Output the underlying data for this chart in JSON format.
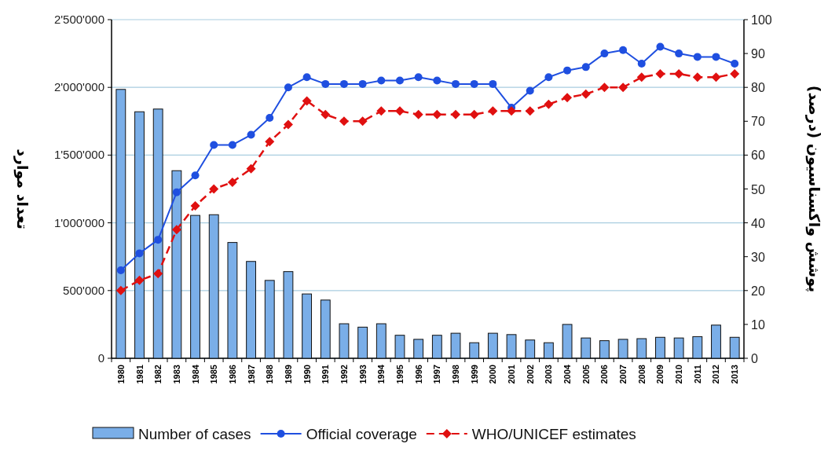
{
  "chart_data": {
    "type": "bar",
    "categories": [
      "1980",
      "1981",
      "1982",
      "1983",
      "1984",
      "1985",
      "1986",
      "1987",
      "1988",
      "1989",
      "1990",
      "1991",
      "1992",
      "1993",
      "1994",
      "1995",
      "1996",
      "1997",
      "1998",
      "1999",
      "2000",
      "2001",
      "2002",
      "2003",
      "2004",
      "2005",
      "2006",
      "2007",
      "2008",
      "2009",
      "2010",
      "2011",
      "2012",
      "2013"
    ],
    "ylabel": "تعداد موارد",
    "y2label": "پوشش واکسناسیون (درصد)",
    "ylim": [
      0,
      2500000
    ],
    "yticks": [
      {
        "value": 0,
        "label": "0"
      },
      {
        "value": 500000,
        "label": "500'000"
      },
      {
        "value": 1000000,
        "label": "1'000'000"
      },
      {
        "value": 1500000,
        "label": "1'500'000"
      },
      {
        "value": 2000000,
        "label": "2'000'000"
      },
      {
        "value": 2500000,
        "label": "2'500'000"
      }
    ],
    "y2lim": [
      0,
      100
    ],
    "y2ticks": [
      0,
      10,
      20,
      30,
      40,
      50,
      60,
      70,
      80,
      90,
      100
    ],
    "grid": "y",
    "legend": "bottom",
    "series": [
      {
        "name": "Number of cases",
        "color": "#7aaee8",
        "values": [
          1985000,
          1820000,
          1840000,
          1385000,
          1055000,
          1060000,
          855000,
          715000,
          575000,
          640000,
          475000,
          430000,
          255000,
          230000,
          255000,
          170000,
          140000,
          170000,
          185000,
          115000,
          185000,
          175000,
          135000,
          115000,
          250000,
          150000,
          130000,
          140000,
          145000,
          155000,
          150000,
          160000,
          245000,
          155000
        ]
      },
      {
        "name": "Official coverage",
        "type": "line",
        "axis": "y2",
        "color": "#1f4fe0",
        "marker": "circle",
        "line_style": "solid",
        "values": [
          26,
          31,
          35,
          49,
          54,
          63,
          63,
          66,
          71,
          80,
          83,
          81,
          81,
          81,
          82,
          82,
          83,
          82,
          81,
          81,
          81,
          74,
          79,
          83,
          85,
          86,
          90,
          91,
          87,
          92,
          90,
          89,
          89,
          87
        ]
      },
      {
        "name": "WHO/UNICEF estimates",
        "type": "line",
        "axis": "y2",
        "color": "#e01010",
        "marker": "diamond",
        "line_style": "dashed",
        "values": [
          20,
          23,
          25,
          38,
          45,
          50,
          52,
          56,
          64,
          69,
          76,
          72,
          70,
          70,
          73,
          73,
          72,
          72,
          72,
          72,
          73,
          73,
          73,
          75,
          77,
          78,
          80,
          80,
          83,
          84,
          84,
          83,
          83,
          84
        ]
      }
    ]
  }
}
